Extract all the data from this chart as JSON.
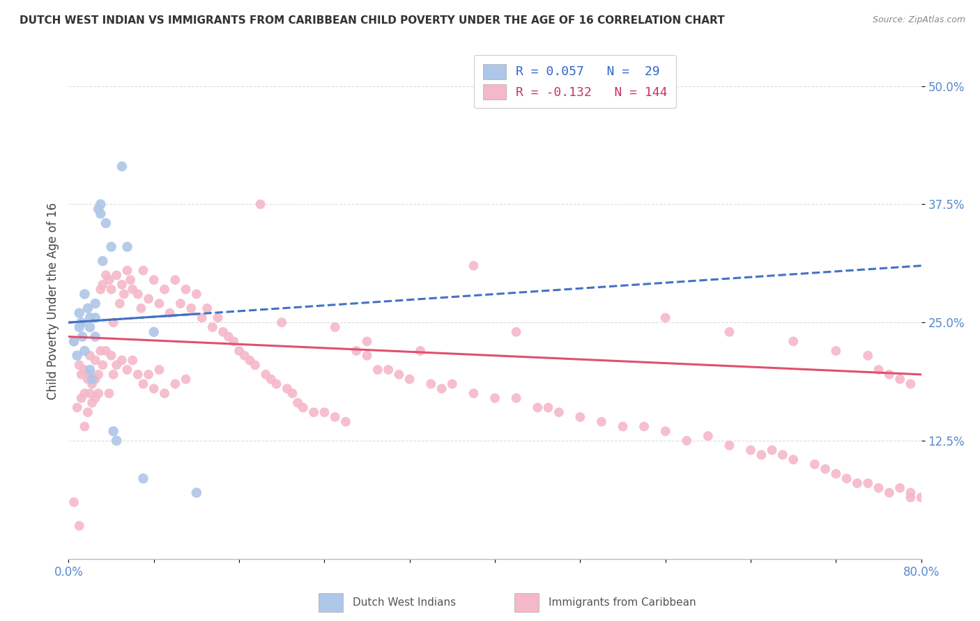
{
  "title": "DUTCH WEST INDIAN VS IMMIGRANTS FROM CARIBBEAN CHILD POVERTY UNDER THE AGE OF 16 CORRELATION CHART",
  "source": "Source: ZipAtlas.com",
  "ylabel": "Child Poverty Under the Age of 16",
  "ytick_labels": [
    "50.0%",
    "37.5%",
    "25.0%",
    "12.5%"
  ],
  "ytick_values": [
    0.5,
    0.375,
    0.25,
    0.125
  ],
  "xlim": [
    0.0,
    0.8
  ],
  "ylim": [
    0.0,
    0.545
  ],
  "legend_label1": "Dutch West Indians",
  "legend_label2": "Immigrants from Caribbean",
  "R1": 0.057,
  "N1": 29,
  "R2": -0.132,
  "N2": 144,
  "color_blue": "#aec6e8",
  "color_pink": "#f5b8c8",
  "line_color_blue": "#4472c4",
  "line_color_pink": "#e05070",
  "blue_x": [
    0.005,
    0.008,
    0.01,
    0.01,
    0.012,
    0.013,
    0.015,
    0.015,
    0.018,
    0.02,
    0.02,
    0.02,
    0.022,
    0.025,
    0.025,
    0.025,
    0.028,
    0.03,
    0.03,
    0.032,
    0.035,
    0.04,
    0.042,
    0.045,
    0.05,
    0.055,
    0.07,
    0.08,
    0.12
  ],
  "blue_y": [
    0.23,
    0.215,
    0.26,
    0.245,
    0.25,
    0.235,
    0.28,
    0.22,
    0.265,
    0.245,
    0.255,
    0.2,
    0.19,
    0.27,
    0.255,
    0.235,
    0.37,
    0.375,
    0.365,
    0.315,
    0.355,
    0.33,
    0.135,
    0.125,
    0.415,
    0.33,
    0.085,
    0.24,
    0.07
  ],
  "pink_x": [
    0.005,
    0.005,
    0.008,
    0.01,
    0.01,
    0.012,
    0.012,
    0.015,
    0.015,
    0.015,
    0.018,
    0.018,
    0.02,
    0.02,
    0.02,
    0.022,
    0.022,
    0.025,
    0.025,
    0.025,
    0.028,
    0.028,
    0.03,
    0.03,
    0.032,
    0.032,
    0.035,
    0.035,
    0.038,
    0.038,
    0.04,
    0.04,
    0.042,
    0.042,
    0.045,
    0.045,
    0.048,
    0.05,
    0.05,
    0.052,
    0.055,
    0.055,
    0.058,
    0.06,
    0.06,
    0.065,
    0.065,
    0.068,
    0.07,
    0.07,
    0.075,
    0.075,
    0.08,
    0.08,
    0.085,
    0.085,
    0.09,
    0.09,
    0.095,
    0.1,
    0.1,
    0.105,
    0.11,
    0.11,
    0.115,
    0.12,
    0.125,
    0.13,
    0.135,
    0.14,
    0.145,
    0.15,
    0.155,
    0.16,
    0.165,
    0.17,
    0.175,
    0.18,
    0.185,
    0.19,
    0.195,
    0.2,
    0.205,
    0.21,
    0.215,
    0.22,
    0.23,
    0.24,
    0.25,
    0.26,
    0.27,
    0.28,
    0.29,
    0.3,
    0.31,
    0.32,
    0.34,
    0.35,
    0.36,
    0.38,
    0.4,
    0.42,
    0.44,
    0.45,
    0.46,
    0.48,
    0.5,
    0.52,
    0.54,
    0.56,
    0.58,
    0.6,
    0.62,
    0.64,
    0.65,
    0.66,
    0.67,
    0.68,
    0.7,
    0.71,
    0.72,
    0.73,
    0.74,
    0.75,
    0.76,
    0.77,
    0.78,
    0.79,
    0.79,
    0.8,
    0.38,
    0.42,
    0.33,
    0.28,
    0.25,
    0.56,
    0.62,
    0.68,
    0.72,
    0.75,
    0.76,
    0.77,
    0.78,
    0.79
  ],
  "pink_y": [
    0.23,
    0.06,
    0.16,
    0.205,
    0.035,
    0.195,
    0.17,
    0.2,
    0.175,
    0.14,
    0.19,
    0.155,
    0.215,
    0.195,
    0.175,
    0.185,
    0.165,
    0.21,
    0.19,
    0.17,
    0.195,
    0.175,
    0.285,
    0.22,
    0.29,
    0.205,
    0.3,
    0.22,
    0.295,
    0.175,
    0.285,
    0.215,
    0.25,
    0.195,
    0.3,
    0.205,
    0.27,
    0.29,
    0.21,
    0.28,
    0.305,
    0.2,
    0.295,
    0.285,
    0.21,
    0.28,
    0.195,
    0.265,
    0.305,
    0.185,
    0.275,
    0.195,
    0.295,
    0.18,
    0.27,
    0.2,
    0.285,
    0.175,
    0.26,
    0.295,
    0.185,
    0.27,
    0.285,
    0.19,
    0.265,
    0.28,
    0.255,
    0.265,
    0.245,
    0.255,
    0.24,
    0.235,
    0.23,
    0.22,
    0.215,
    0.21,
    0.205,
    0.375,
    0.195,
    0.19,
    0.185,
    0.25,
    0.18,
    0.175,
    0.165,
    0.16,
    0.155,
    0.155,
    0.15,
    0.145,
    0.22,
    0.215,
    0.2,
    0.2,
    0.195,
    0.19,
    0.185,
    0.18,
    0.185,
    0.175,
    0.17,
    0.17,
    0.16,
    0.16,
    0.155,
    0.15,
    0.145,
    0.14,
    0.14,
    0.135,
    0.125,
    0.13,
    0.12,
    0.115,
    0.11,
    0.115,
    0.11,
    0.105,
    0.1,
    0.095,
    0.09,
    0.085,
    0.08,
    0.08,
    0.075,
    0.07,
    0.075,
    0.065,
    0.07,
    0.065,
    0.31,
    0.24,
    0.22,
    0.23,
    0.245,
    0.255,
    0.24,
    0.23,
    0.22,
    0.215,
    0.2,
    0.195,
    0.19,
    0.185
  ]
}
